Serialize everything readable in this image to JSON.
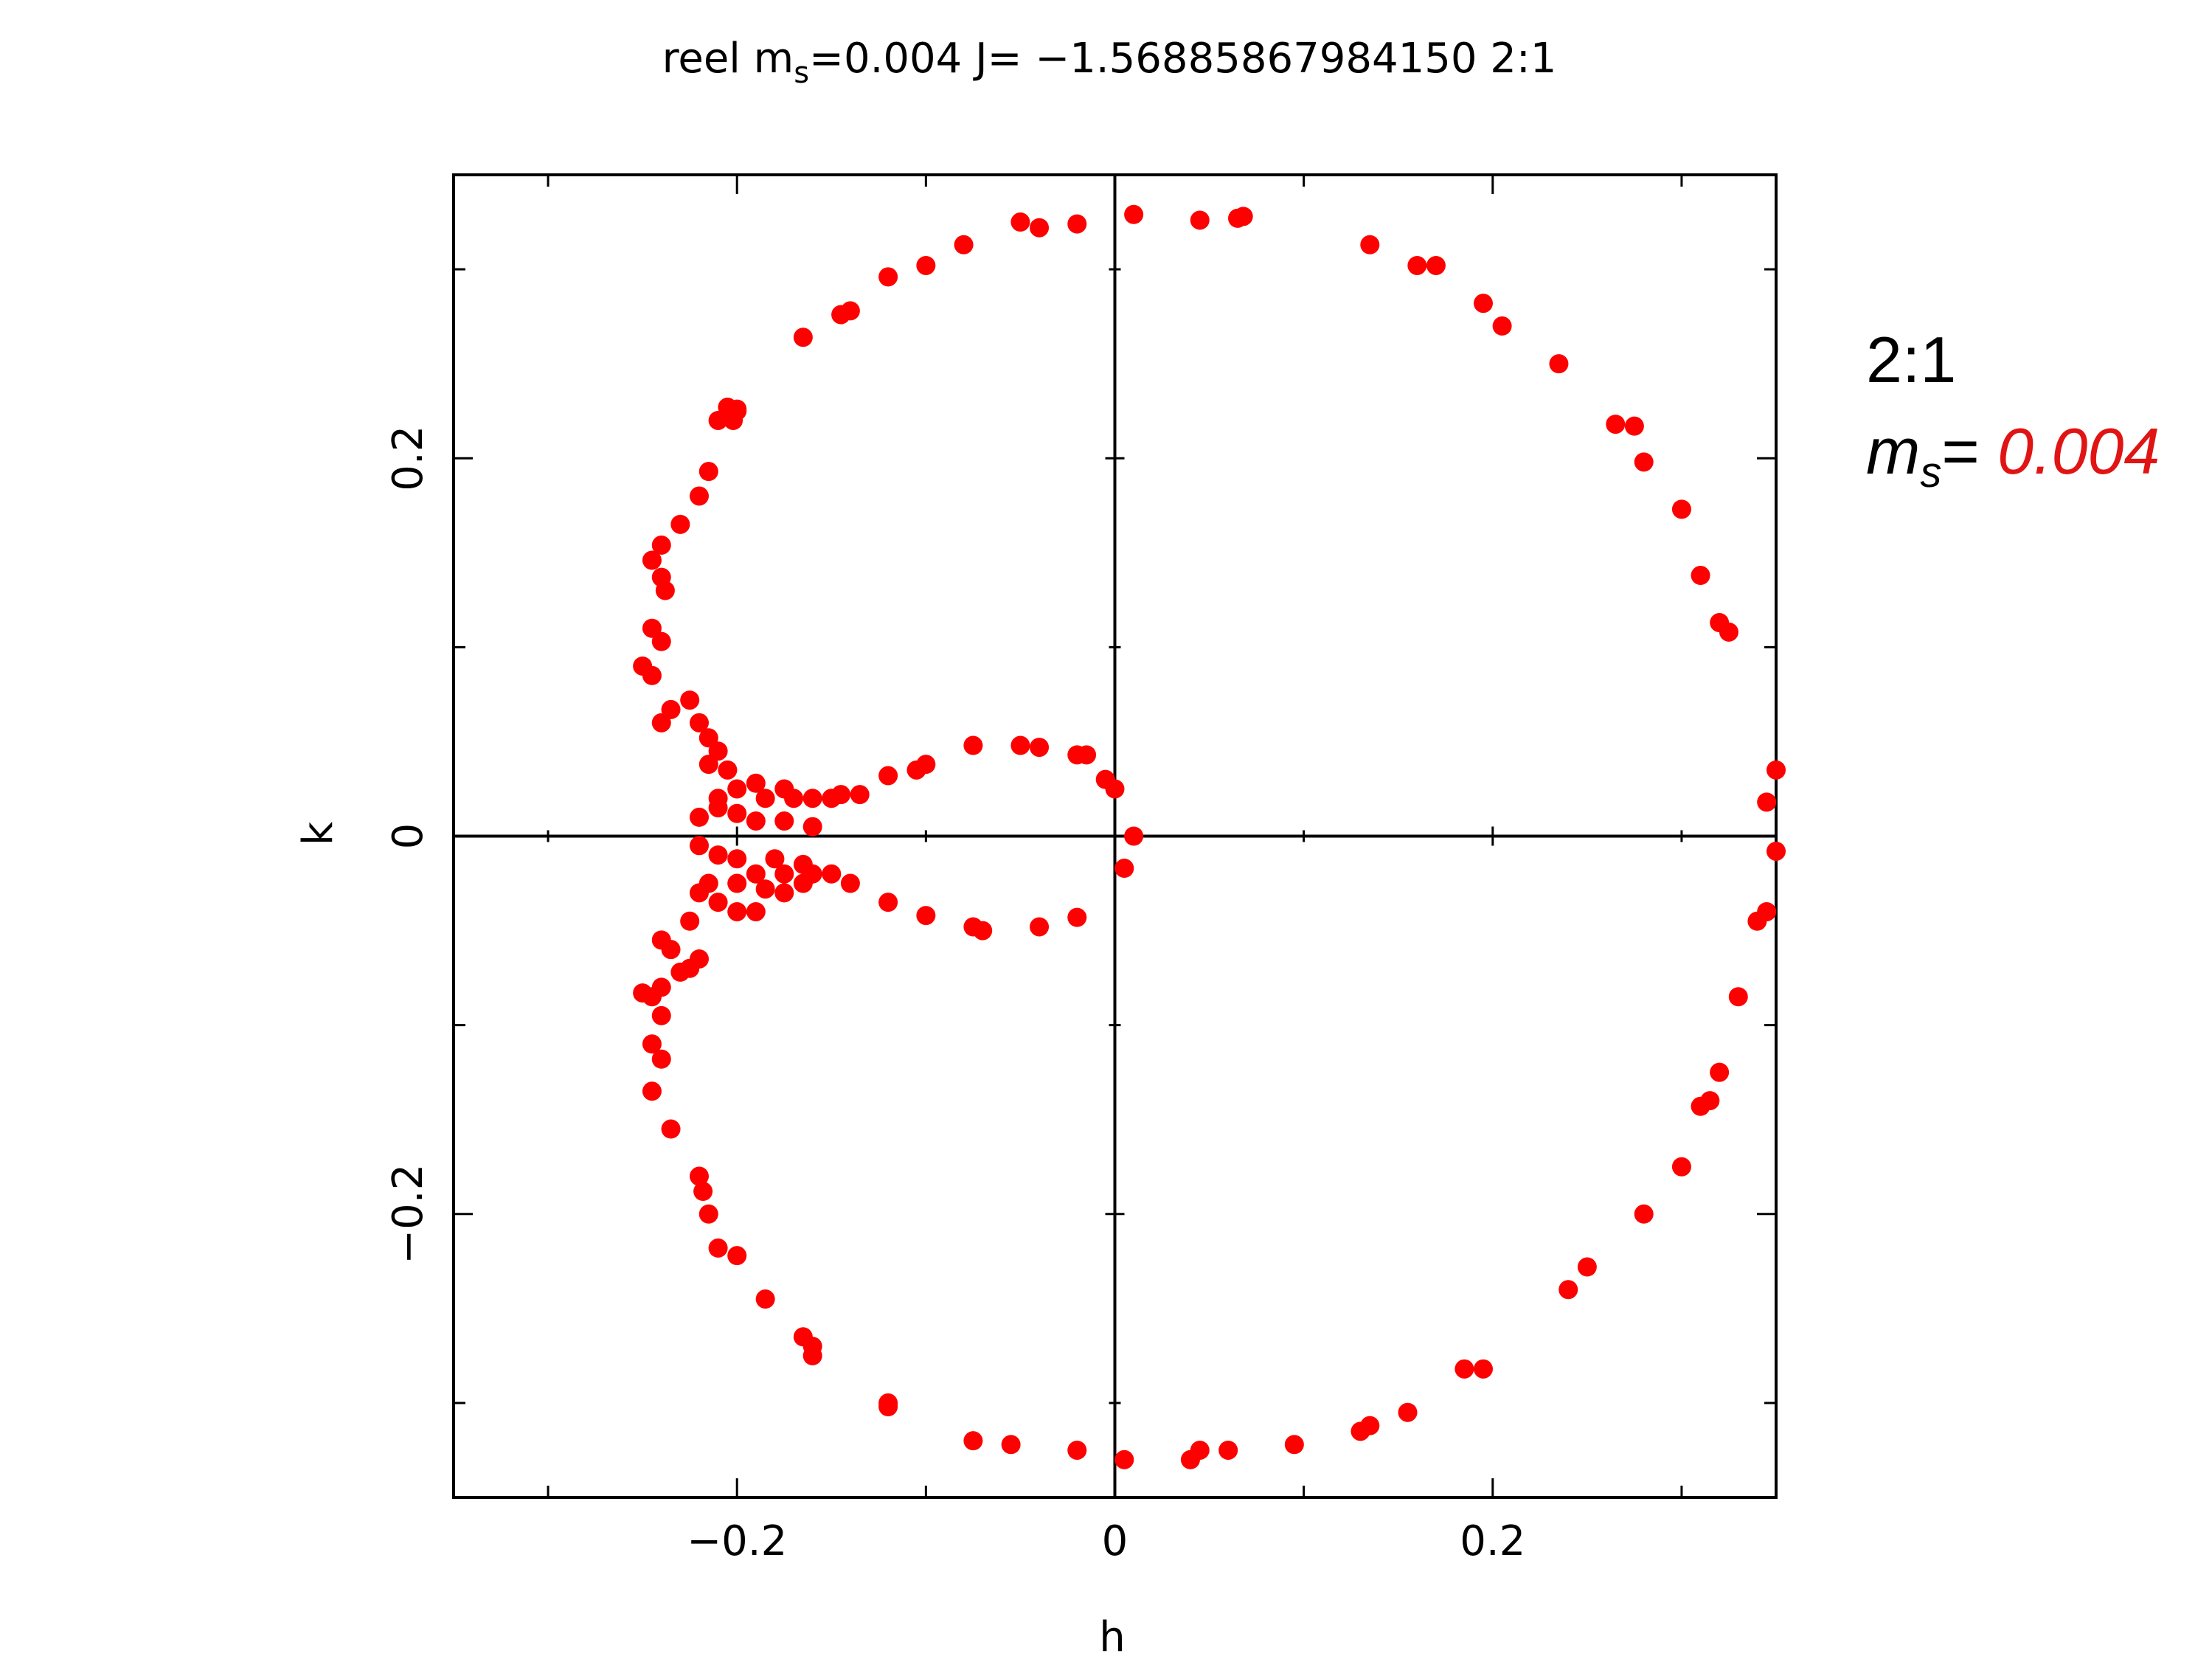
{
  "chart_data": {
    "type": "scatter",
    "title_parts": {
      "prefix": "reel m",
      "sub": "s",
      "rest": "=0.004 J= −1.56885867984150 2:1"
    },
    "xlabel": "h",
    "ylabel": "k",
    "xlim": [
      -0.35,
      0.35
    ],
    "ylim": [
      -0.35,
      0.35
    ],
    "x_ticks": [
      {
        "value": -0.2,
        "label": "−0.2"
      },
      {
        "value": 0,
        "label": "0"
      },
      {
        "value": 0.2,
        "label": "0.2"
      }
    ],
    "y_ticks": [
      {
        "value": -0.2,
        "label": "−0.2"
      },
      {
        "value": 0,
        "label": "0"
      },
      {
        "value": 0.2,
        "label": "0.2"
      }
    ],
    "minor_tick_step": 0.1,
    "crosshair_at_zero": true,
    "grid": false,
    "marker_color": "#ff0000",
    "points": [
      [
        -0.05,
        0.325
      ],
      [
        -0.04,
        0.322
      ],
      [
        -0.02,
        0.324
      ],
      [
        0.01,
        0.329
      ],
      [
        0.045,
        0.326
      ],
      [
        0.065,
        0.327
      ],
      [
        0.068,
        0.328
      ],
      [
        -0.08,
        0.313
      ],
      [
        -0.1,
        0.302
      ],
      [
        -0.12,
        0.296
      ],
      [
        -0.14,
        0.278
      ],
      [
        -0.145,
        0.276
      ],
      [
        -0.165,
        0.264
      ],
      [
        -0.205,
        0.227
      ],
      [
        -0.2,
        0.226
      ],
      [
        -0.202,
        0.22
      ],
      [
        -0.21,
        0.22
      ],
      [
        -0.2,
        0.225
      ],
      [
        -0.215,
        0.193
      ],
      [
        -0.22,
        0.18
      ],
      [
        -0.23,
        0.165
      ],
      [
        -0.24,
        0.154
      ],
      [
        -0.245,
        0.146
      ],
      [
        -0.24,
        0.137
      ],
      [
        -0.238,
        0.13
      ],
      [
        -0.245,
        0.11
      ],
      [
        -0.24,
        0.103
      ],
      [
        -0.25,
        0.09
      ],
      [
        -0.245,
        0.085
      ],
      [
        -0.24,
        0.06
      ],
      [
        -0.235,
        0.067
      ],
      [
        -0.225,
        0.072
      ],
      [
        -0.22,
        0.06
      ],
      [
        -0.215,
        0.052
      ],
      [
        -0.21,
        0.045
      ],
      [
        -0.205,
        0.035
      ],
      [
        -0.215,
        0.038
      ],
      [
        -0.2,
        0.025
      ],
      [
        -0.21,
        0.02
      ],
      [
        -0.19,
        0.028
      ],
      [
        -0.185,
        0.02
      ],
      [
        -0.175,
        0.025
      ],
      [
        -0.17,
        0.02
      ],
      [
        -0.16,
        0.02
      ],
      [
        -0.15,
        0.02
      ],
      [
        -0.145,
        0.022
      ],
      [
        -0.135,
        0.022
      ],
      [
        -0.12,
        0.032
      ],
      [
        -0.105,
        0.035
      ],
      [
        -0.1,
        0.038
      ],
      [
        -0.075,
        0.048
      ],
      [
        -0.05,
        0.048
      ],
      [
        -0.04,
        0.047
      ],
      [
        -0.02,
        0.043
      ],
      [
        -0.015,
        0.043
      ],
      [
        -0.005,
        0.03
      ],
      [
        0.0,
        0.025
      ],
      [
        -0.21,
        0.015
      ],
      [
        -0.2,
        0.012
      ],
      [
        -0.22,
        0.01
      ],
      [
        -0.19,
        0.008
      ],
      [
        -0.175,
        0.008
      ],
      [
        -0.16,
        0.005
      ],
      [
        -0.2,
        -0.012
      ],
      [
        -0.18,
        -0.012
      ],
      [
        -0.165,
        -0.015
      ],
      [
        -0.21,
        -0.01
      ],
      [
        -0.22,
        -0.005
      ],
      [
        -0.19,
        -0.02
      ],
      [
        -0.2,
        -0.025
      ],
      [
        -0.215,
        -0.025
      ],
      [
        -0.175,
        -0.02
      ],
      [
        -0.16,
        -0.02
      ],
      [
        -0.15,
        -0.02
      ],
      [
        -0.14,
        -0.025
      ],
      [
        -0.12,
        -0.035
      ],
      [
        -0.185,
        -0.028
      ],
      [
        -0.175,
        -0.03
      ],
      [
        -0.165,
        -0.025
      ],
      [
        -0.21,
        -0.035
      ],
      [
        -0.2,
        -0.04
      ],
      [
        -0.22,
        -0.03
      ],
      [
        -0.19,
        -0.04
      ],
      [
        -0.225,
        -0.045
      ],
      [
        -0.1,
        -0.042
      ],
      [
        -0.075,
        -0.048
      ],
      [
        -0.07,
        -0.05
      ],
      [
        -0.04,
        -0.048
      ],
      [
        -0.02,
        -0.043
      ],
      [
        0.005,
        -0.017
      ],
      [
        0.01,
        0.0
      ],
      [
        0.35,
        0.035
      ],
      [
        0.345,
        0.018
      ],
      [
        0.35,
        -0.008
      ],
      [
        -0.24,
        -0.055
      ],
      [
        -0.235,
        -0.06
      ],
      [
        -0.22,
        -0.065
      ],
      [
        -0.225,
        -0.07
      ],
      [
        -0.23,
        -0.072
      ],
      [
        -0.25,
        -0.083
      ],
      [
        -0.245,
        -0.085
      ],
      [
        -0.24,
        -0.08
      ],
      [
        -0.24,
        -0.095
      ],
      [
        -0.245,
        -0.11
      ],
      [
        -0.24,
        -0.118
      ],
      [
        -0.245,
        -0.135
      ],
      [
        -0.235,
        -0.155
      ],
      [
        -0.22,
        -0.18
      ],
      [
        -0.218,
        -0.188
      ],
      [
        -0.215,
        -0.2
      ],
      [
        -0.21,
        -0.218
      ],
      [
        -0.2,
        -0.222
      ],
      [
        -0.185,
        -0.245
      ],
      [
        -0.165,
        -0.265
      ],
      [
        -0.16,
        -0.27
      ],
      [
        -0.16,
        -0.275
      ],
      [
        -0.12,
        -0.3
      ],
      [
        -0.12,
        -0.302
      ],
      [
        -0.075,
        -0.32
      ],
      [
        -0.055,
        -0.322
      ],
      [
        -0.02,
        -0.325
      ],
      [
        0.005,
        -0.33
      ],
      [
        0.04,
        -0.33
      ],
      [
        0.045,
        -0.325
      ],
      [
        0.06,
        -0.325
      ],
      [
        0.095,
        -0.322
      ],
      [
        0.13,
        -0.315
      ],
      [
        0.135,
        -0.312
      ],
      [
        0.155,
        -0.305
      ],
      [
        0.185,
        -0.282
      ],
      [
        0.195,
        -0.282
      ],
      [
        0.24,
        -0.24
      ],
      [
        0.25,
        -0.228
      ],
      [
        0.28,
        -0.2
      ],
      [
        0.3,
        -0.175
      ],
      [
        0.31,
        -0.143
      ],
      [
        0.315,
        -0.14
      ],
      [
        0.32,
        -0.125
      ],
      [
        0.33,
        -0.085
      ],
      [
        0.34,
        -0.045
      ],
      [
        0.345,
        -0.04
      ],
      [
        0.135,
        0.313
      ],
      [
        0.16,
        0.302
      ],
      [
        0.17,
        0.302
      ],
      [
        0.195,
        0.282
      ],
      [
        0.205,
        0.27
      ],
      [
        0.235,
        0.25
      ],
      [
        0.265,
        0.218
      ],
      [
        0.275,
        0.217
      ],
      [
        0.28,
        0.198
      ],
      [
        0.3,
        0.173
      ],
      [
        0.31,
        0.138
      ],
      [
        0.32,
        0.113
      ],
      [
        0.325,
        0.108
      ]
    ]
  },
  "side_note": {
    "line1": "2:1",
    "ms_symbol": "m",
    "ms_sub": "s",
    "ms_eq": "= ",
    "ms_value": "0.004",
    "ms_value_color": "#e11414"
  }
}
